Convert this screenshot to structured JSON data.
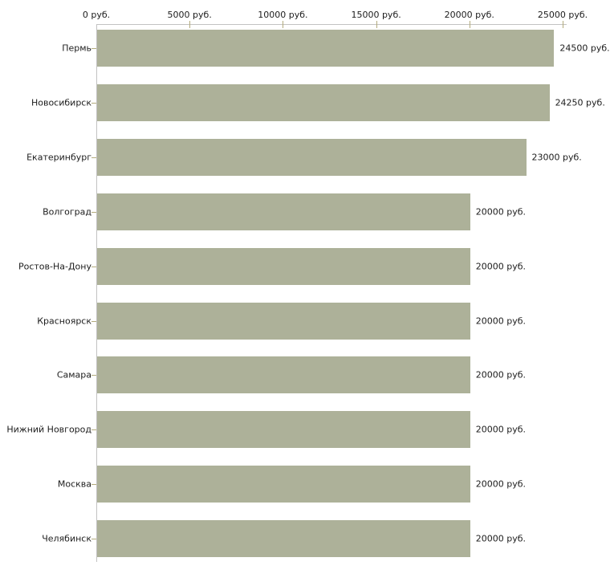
{
  "chart_data": {
    "type": "bar",
    "orientation": "horizontal",
    "title": "",
    "unit": "руб.",
    "categories": [
      "Пермь",
      "Новосибирск",
      "Екатеринбург",
      "Волгоград",
      "Ростов-На-Дону",
      "Красноярск",
      "Самара",
      "Нижний Новгород",
      "Москва",
      "Челябинск"
    ],
    "values": [
      24500,
      24250,
      23000,
      20000,
      20000,
      20000,
      20000,
      20000,
      20000,
      20000
    ],
    "value_labels": [
      "24500 руб.",
      "24250 руб.",
      "23000 руб.",
      "20000 руб.",
      "20000 руб.",
      "20000 руб.",
      "20000 руб.",
      "20000 руб.",
      "20000 руб.",
      "20000 руб."
    ],
    "x_axis": {
      "min": 0,
      "max": 25000,
      "tick_values": [
        0,
        5000,
        10000,
        15000,
        20000,
        25000
      ],
      "tick_labels": [
        "0 руб.",
        "5000 руб.",
        "10000 руб.",
        "15000 руб.",
        "20000 руб.",
        "25000 руб."
      ]
    },
    "grid": false,
    "legend": null
  },
  "colors": {
    "bar_fill": "#adb199",
    "axis_line": "#c2c2c2",
    "tick_mark": "#b3ab7d",
    "label_text": "#1c1c1c",
    "background": "#ffffff"
  }
}
